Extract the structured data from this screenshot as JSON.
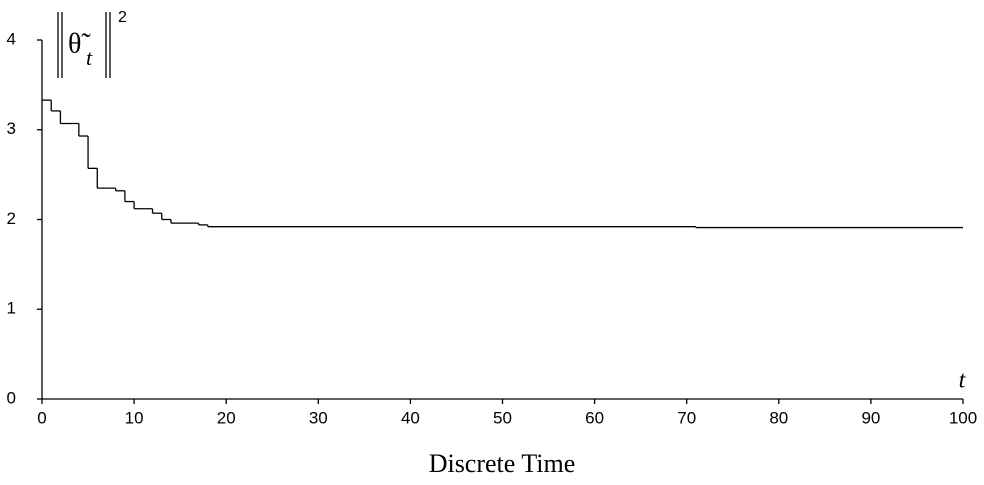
{
  "chart_data": {
    "type": "step",
    "xlabel": "Discrete Time",
    "x_annotation": "t",
    "ylabel": "θ̃",
    "ylabel_sub": "t",
    "ylabel_sup": "2",
    "x": [
      0,
      1,
      2,
      4,
      5,
      6,
      8,
      9,
      10,
      12,
      13,
      14,
      17,
      18,
      71
    ],
    "values": [
      3.33,
      3.21,
      3.07,
      2.93,
      2.57,
      2.35,
      2.32,
      2.2,
      2.12,
      2.07,
      2.0,
      1.96,
      1.94,
      1.92,
      1.91
    ],
    "color": "#000000",
    "xlim": [
      0,
      100
    ],
    "xticks": [
      0,
      10,
      20,
      30,
      40,
      50,
      60,
      70,
      80,
      90,
      100
    ],
    "ylim": [
      0,
      4
    ],
    "yticks": [
      0,
      1,
      2,
      3,
      4
    ],
    "grid": false
  }
}
